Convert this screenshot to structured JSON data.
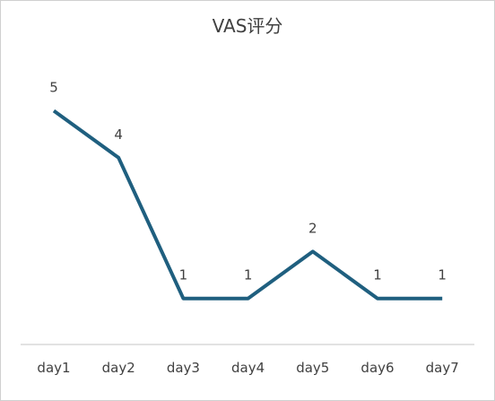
{
  "chart_data": {
    "type": "line",
    "title": "VAS评分",
    "categories": [
      "day1",
      "day2",
      "day3",
      "day4",
      "day5",
      "day6",
      "day7"
    ],
    "values": [
      5,
      4,
      1,
      1,
      2,
      1,
      1
    ],
    "data_labels": [
      "5",
      "4",
      "1",
      "1",
      "2",
      "1",
      "1"
    ],
    "xlabel": "",
    "ylabel": "",
    "y_axis_visible": false,
    "grid": false,
    "drop_lines": true,
    "legend": "none",
    "line_color": "#1f5f7f",
    "drop_line_color": "#c8d2da",
    "axis_color": "#d9d9d9"
  }
}
